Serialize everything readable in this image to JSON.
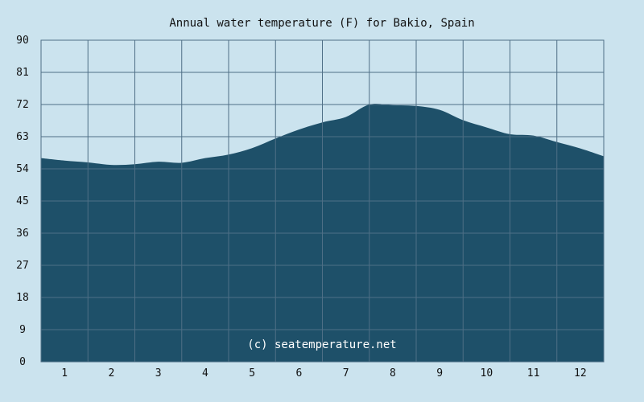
{
  "chart_data": {
    "type": "area",
    "title": "Annual water temperature (F) for Bakio, Spain",
    "xlabel": "",
    "ylabel": "",
    "ylim": [
      0,
      90
    ],
    "xlim": [
      0.5,
      12.5
    ],
    "y_ticks": [
      0,
      9,
      18,
      27,
      36,
      45,
      54,
      63,
      72,
      81,
      90
    ],
    "x_ticks": [
      1,
      2,
      3,
      4,
      5,
      6,
      7,
      8,
      9,
      10,
      11,
      12
    ],
    "grid": true,
    "annotation": "(c) seatemperature.net",
    "colors": {
      "background": "#cbe3ee",
      "plot_background": "#cbe3ee",
      "area_fill": "#1e5069",
      "grid": "#4f6f86",
      "border": "#4f6f86"
    },
    "series": [
      {
        "x": [
          0.5,
          1.0,
          1.5,
          2.0,
          2.5,
          3.0,
          3.5,
          4.0,
          4.5,
          5.0,
          5.5,
          6.0,
          6.5,
          7.0,
          7.5,
          8.0,
          8.5,
          9.0,
          9.5,
          10.0,
          10.5,
          11.0,
          11.5,
          12.0,
          12.5
        ],
        "y": [
          57.0,
          56.3,
          55.8,
          55.1,
          55.3,
          56.0,
          55.7,
          57.0,
          58.0,
          59.8,
          62.5,
          65.0,
          67.0,
          68.5,
          72.0,
          71.8,
          71.6,
          70.5,
          67.6,
          65.6,
          63.7,
          63.3,
          61.5,
          59.7,
          57.5
        ]
      }
    ]
  }
}
